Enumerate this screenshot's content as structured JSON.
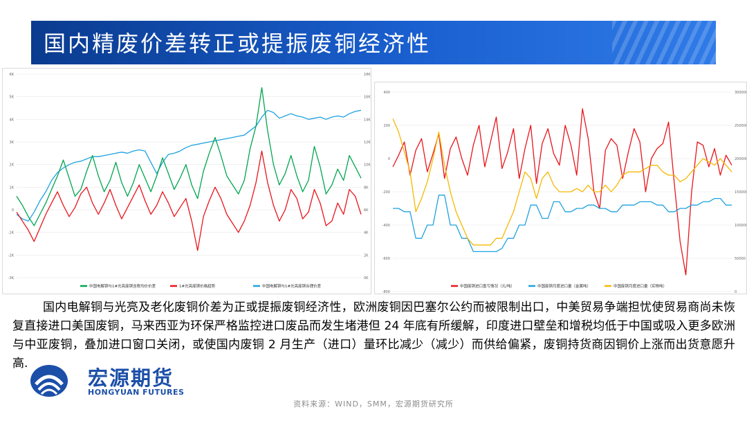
{
  "title": "国内精废价差转正或提振废铜经济性",
  "body_text": "国内电解铜与光亮及老化废铜价差为正或提振废铜经济性，欧洲废铜因巴塞尔公约而被限制出口，中美贸易争端担忧使贸易商尚未恢复直接进口美国废铜，马来西亚为环保严格监控进口废品而发生堵港但 24 年底有所缓解，印度进口壁垒和增税均低于中国或吸入更多欧洲与中亚废铜，叠加进口窗口关闭，或使国内废铜 2 月生产（进口）量环比减少（减少）而供给偏紧，废铜持货商因铜价上涨而出货意愿升高.",
  "logo": {
    "cn": "宏源期货",
    "en": "HONGYUAN FUTURES"
  },
  "source": "资料来源：WIND，SMM，宏源期货研究所",
  "colors": {
    "green": "#00a550",
    "red": "#e8141b",
    "blue": "#1ea1e0",
    "orange": "#f5b800",
    "title_bar": "#1150b8"
  },
  "chart_data": [
    {
      "type": "line",
      "left_axis": {
        "ticks": [
          "-3K",
          "-2K",
          "-1K",
          "0",
          "1K",
          "2K",
          "3K",
          "4K",
          "5K",
          "6K"
        ],
        "ylim": [
          -3000,
          6000
        ]
      },
      "right_axis": {
        "ticks": [
          "0K",
          "2K",
          "4K",
          "6K",
          "8K",
          "10K",
          "12K",
          "14K",
          "16K",
          "18K"
        ],
        "ylim": [
          0,
          18000
        ]
      },
      "series": [
        {
          "name": "中国电解铜与1#光亮废铜含税均价价差",
          "axis": "left",
          "color": "#00a550",
          "values": [
            600,
            200,
            -300,
            -700,
            -200,
            300,
            900,
            1500,
            2200,
            1400,
            600,
            900,
            1700,
            2400,
            1500,
            800,
            1300,
            2100,
            1200,
            600,
            1200,
            2000,
            1400,
            800,
            1500,
            2300,
            1600,
            900,
            1400,
            2000,
            1100,
            500,
            1700,
            2500,
            3200,
            2400,
            1500,
            1100,
            700,
            1300,
            2700,
            3700,
            5400,
            3500,
            2000,
            1100,
            1600,
            2400,
            1500,
            800,
            1300,
            2800,
            1900,
            700,
            1100,
            1800,
            1300,
            2400,
            1900,
            1400
          ]
        },
        {
          "name": "1#光亮废铜价格趋势",
          "axis": "left",
          "color": "#e8141b",
          "values": [
            -100,
            -500,
            -900,
            -1400,
            -800,
            -200,
            300,
            800,
            200,
            -300,
            100,
            700,
            1000,
            300,
            -200,
            300,
            900,
            200,
            -400,
            100,
            600,
            1100,
            400,
            -200,
            200,
            800,
            300,
            -300,
            100,
            500,
            -500,
            -1800,
            -300,
            400,
            1000,
            500,
            -200,
            -600,
            -1000,
            -500,
            200,
            1200,
            2600,
            1200,
            200,
            -500,
            0,
            900,
            500,
            -400,
            -100,
            900,
            300,
            -700,
            -500,
            300,
            -200,
            900,
            600,
            -200
          ]
        },
        {
          "name": "中国电解铜与1#光亮废铜合理价差",
          "axis": "right",
          "color": "#1ea1e0",
          "values": [
            5600,
            5200,
            5000,
            5800,
            6800,
            7600,
            8600,
            9300,
            9700,
            10000,
            10200,
            10300,
            10500,
            10700,
            10700,
            10800,
            10900,
            11000,
            11100,
            11000,
            11200,
            11300,
            11200,
            10200,
            9200,
            10200,
            10900,
            11000,
            11200,
            11500,
            11700,
            11800,
            11900,
            12000,
            12100,
            12200,
            12300,
            12400,
            12500,
            12600,
            13000,
            13400,
            14200,
            14800,
            14600,
            14100,
            14300,
            14500,
            14300,
            14200,
            14000,
            14100,
            14200,
            14000,
            14200,
            14300,
            14200,
            14500,
            14700,
            14800
          ]
        }
      ]
    },
    {
      "type": "line",
      "left_axis": {
        "ticks": [
          "-800",
          "-600",
          "-400",
          "-200",
          "0",
          "200",
          "400"
        ],
        "ylim": [
          -800,
          400
        ]
      },
      "right_axis": {
        "ticks": [
          "0",
          "50000",
          "100000",
          "150000",
          "200000",
          "250000",
          "300000"
        ],
        "ylim": [
          0,
          300000
        ]
      },
      "series": [
        {
          "name": "中国废铜进口盈亏情况（元/吨）",
          "axis": "left",
          "color": "#e8141b",
          "values": [
            -50,
            20,
            100,
            -100,
            50,
            120,
            -80,
            30,
            150,
            -120,
            60,
            130,
            0,
            -100,
            80,
            200,
            -50,
            100,
            250,
            -60,
            40,
            180,
            -120,
            60,
            200,
            -150,
            90,
            180,
            30,
            -40,
            200,
            80,
            -100,
            300,
            120,
            -200,
            -300,
            50,
            120,
            80,
            -120,
            40,
            180,
            100,
            -200,
            0,
            60,
            90,
            220,
            -150,
            -500,
            -700,
            -200,
            100,
            80,
            -50,
            60,
            -100,
            20,
            -40
          ]
        },
        {
          "name": "中国废铜月度进口量（金属吨）",
          "axis": "right",
          "color": "#1ea1e0",
          "values": [
            125000,
            125000,
            120000,
            120000,
            80000,
            80000,
            100000,
            100000,
            145000,
            145000,
            100000,
            100000,
            80000,
            80000,
            60000,
            60000,
            60000,
            60000,
            60000,
            65000,
            80000,
            80000,
            100000,
            100000,
            130000,
            130000,
            110000,
            110000,
            135000,
            135000,
            120000,
            120000,
            125000,
            125000,
            130000,
            130000,
            125000,
            125000,
            120000,
            120000,
            130000,
            130000,
            130000,
            135000,
            135000,
            135000,
            130000,
            130000,
            120000,
            120000,
            125000,
            125000,
            130000,
            130000,
            135000,
            135000,
            140000,
            140000,
            130000,
            130000
          ]
        },
        {
          "name": "中国废铜月度进口量（实物吨）",
          "axis": "right",
          "color": "#f5b800",
          "values": [
            260000,
            240000,
            210000,
            180000,
            120000,
            140000,
            165000,
            200000,
            240000,
            190000,
            150000,
            120000,
            100000,
            80000,
            70000,
            70000,
            70000,
            70000,
            80000,
            80000,
            100000,
            120000,
            150000,
            180000,
            170000,
            140000,
            170000,
            180000,
            160000,
            150000,
            150000,
            150000,
            155000,
            150000,
            160000,
            150000,
            150000,
            160000,
            150000,
            160000,
            175000,
            180000,
            180000,
            180000,
            185000,
            190000,
            190000,
            180000,
            175000,
            175000,
            165000,
            170000,
            180000,
            190000,
            200000,
            195000,
            190000,
            200000,
            190000,
            180000
          ]
        }
      ]
    }
  ]
}
